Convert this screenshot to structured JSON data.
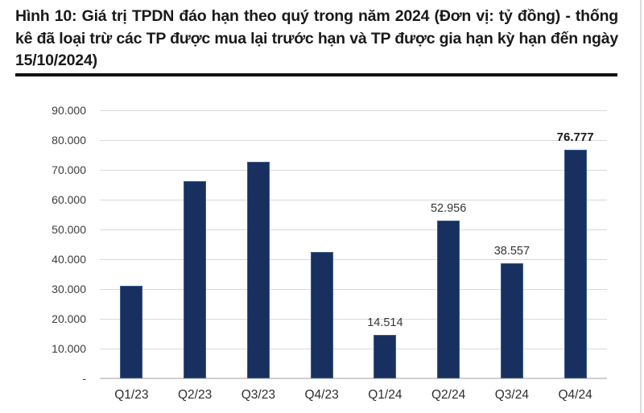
{
  "figure": {
    "title": "Hình 10: Giá trị TPDN đáo hạn theo quý trong năm 2024 (Đơn vị: tỷ đồng) - thống kê đã loại trừ các TP được mua lại trước hạn và TP được gia hạn kỳ hạn đến ngày 15/10/2024)"
  },
  "colors": {
    "bar_fill": "#18305f",
    "bar_edge": "#3e5a8c",
    "gridline": "#d9d9d9",
    "baseline": "#cfcfcf",
    "title_text": "#1a1a1a",
    "axis_text": "#3d3d3d",
    "rule": "#121212"
  },
  "chart_data": {
    "type": "bar",
    "title": "Giá trị TPDN đáo hạn theo quý trong năm 2024",
    "unit": "tỷ đồng",
    "categories": [
      "Q1/23",
      "Q2/23",
      "Q3/23",
      "Q4/23",
      "Q1/24",
      "Q2/24",
      "Q3/24",
      "Q4/24"
    ],
    "values": [
      31200,
      66200,
      72800,
      42300,
      14514,
      52956,
      38557,
      76777
    ],
    "data_labels": [
      null,
      null,
      null,
      null,
      "14.514",
      "52.956",
      "38.557",
      "76.777"
    ],
    "bold_label_index": 7,
    "y_ticks": [
      "90.000",
      "80.000",
      "70.000",
      "60.000",
      "50.000",
      "40.000",
      "30.000",
      "20.000",
      "10.000",
      "-"
    ],
    "y_tick_values": [
      90000,
      80000,
      70000,
      60000,
      50000,
      40000,
      30000,
      20000,
      10000,
      0
    ],
    "ylim": [
      0,
      90000
    ],
    "grid": true,
    "legend": "none",
    "xlabel": "",
    "ylabel": ""
  }
}
